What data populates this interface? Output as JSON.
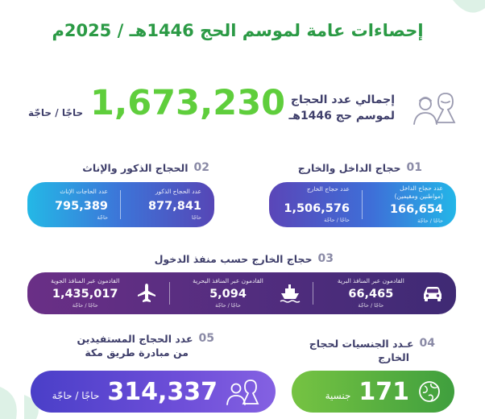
{
  "title": "إحصاءات عامة لموسم الحج 1446هـ / 2025م",
  "total": {
    "label_line1": "إجمالي عدد الحجاج",
    "label_line2": "لموسم حج 1446هـ",
    "value": "1,673,230",
    "unit": "حاجًا / حاجّة"
  },
  "section1": {
    "number": "01",
    "heading": "حجاج الداخل والخارج",
    "cells": [
      {
        "title": "عدد حجاج الداخل",
        "subtitle": "(مواطنين ومقيمين)",
        "value": "166,654",
        "unit": "حاجًا / حاجّة"
      },
      {
        "title": "عدد حجاج الخارج",
        "value": "1,506,576",
        "unit": "حاجًا / حاجّة"
      }
    ]
  },
  "section2": {
    "number": "02",
    "heading": "الحجاج الذكور والإناث",
    "cells": [
      {
        "title": "عدد الحجاج الذكور",
        "value": "877,841",
        "unit": "حاجًا"
      },
      {
        "title": "عدد الحاجات الإناث",
        "value": "795,389",
        "unit": "حاجّة"
      }
    ]
  },
  "section3": {
    "number": "03",
    "heading": "حجاج الخارج حسب منفذ الدخول",
    "cells": [
      {
        "title": "القادمون عبر المنافذ البرية",
        "value": "66,465",
        "unit": "حاجًا / حاجّة",
        "icon": "car-icon"
      },
      {
        "title": "القادمون عبر المنافذ البحرية",
        "value": "5,094",
        "unit": "حاجًا / حاجّة",
        "icon": "ship-icon"
      },
      {
        "title": "القادمون عبر المنافذ الجوية",
        "value": "1,435,017",
        "unit": "حاجًا / حاجّة",
        "icon": "airplane-icon"
      }
    ]
  },
  "section4": {
    "number": "04",
    "heading_line1": "عـدد الجنسيات لحجاج",
    "heading_line2": "الخارج",
    "value": "171",
    "unit": "جنسية",
    "icon": "globe-icon"
  },
  "section5": {
    "number": "05",
    "heading_line1": "عدد الحجاج المستفيدين",
    "heading_line2": "من مبادرة طريق مكة",
    "value": "314,337",
    "unit": "حاجًا / حاجّة",
    "icon": "pilgrims-icon"
  },
  "colors": {
    "title_green": "#2b9a45",
    "total_green": "#5fce3c",
    "text_navy": "#3f3f6b",
    "gate_purple": "#532d7f",
    "nationalities_green": "#3f9f3e",
    "makkah_route_violet": "#6d4ed8"
  }
}
